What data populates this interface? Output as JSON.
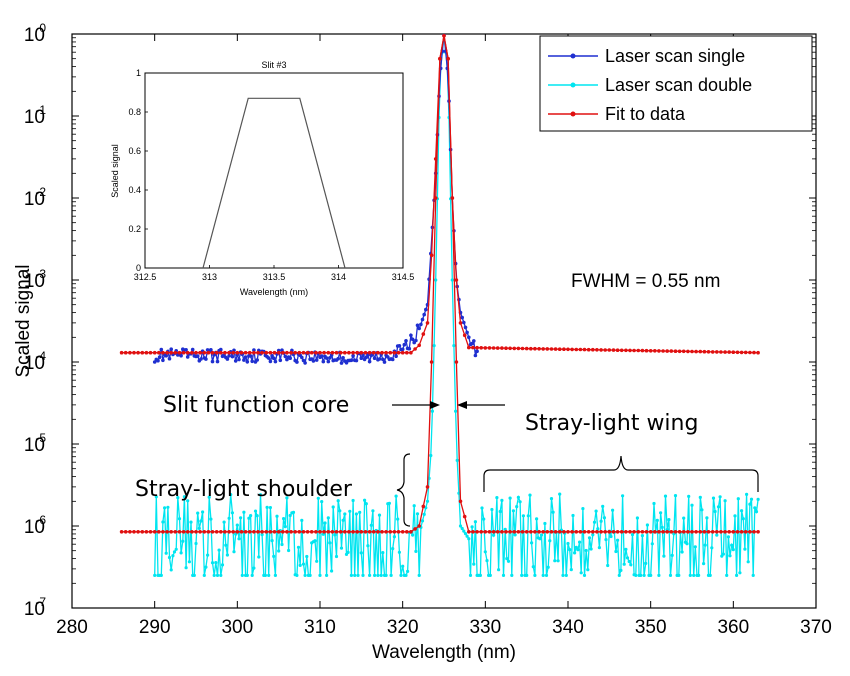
{
  "chart_data": [
    {
      "type": "line",
      "title": "",
      "xlabel": "Wavelength (nm)",
      "ylabel": "Scaled signal",
      "xlim": [
        280,
        370
      ],
      "ylim_log10": [
        -7,
        0
      ],
      "y_scale": "log",
      "x_ticks": [
        "280",
        "290",
        "300",
        "310",
        "320",
        "330",
        "340",
        "350",
        "360",
        "370"
      ],
      "y_ticks": [
        {
          "base": "10",
          "exp": "0"
        },
        {
          "base": "10",
          "exp": "-1"
        },
        {
          "base": "10",
          "exp": "-2"
        },
        {
          "base": "10",
          "exp": "-3"
        },
        {
          "base": "10",
          "exp": "-4"
        },
        {
          "base": "10",
          "exp": "-5"
        },
        {
          "base": "10",
          "exp": "-6"
        },
        {
          "base": "10",
          "exp": "-7"
        }
      ],
      "legend_position": "top-right",
      "series": [
        {
          "name": "Laser scan single",
          "color": "#1f2fd0",
          "x_range": [
            290,
            329
          ],
          "baseline": 0.00012,
          "x": [
            290,
            295,
            300,
            305,
            310,
            315,
            318,
            320,
            321,
            322,
            323,
            323.5,
            324,
            324.5,
            325,
            325.5,
            326,
            326.5,
            327,
            328,
            329
          ],
          "y": [
            0.00012,
            0.00012,
            0.00012,
            0.00012,
            0.000115,
            0.00011,
            0.00012,
            0.00014,
            0.00018,
            0.00025,
            0.0005,
            0.003,
            0.02,
            0.3,
            1.0,
            0.3,
            0.01,
            0.001,
            0.0004,
            0.0002,
            0.00013
          ]
        },
        {
          "name": "Laser scan double",
          "color": "#00e5f0",
          "x_range": [
            290,
            363
          ],
          "noise_floor": [
            2.5e-07,
            2.5e-06
          ],
          "x": [
            322,
            323,
            323.5,
            324,
            324.5,
            325,
            325.5,
            326,
            326.5,
            327,
            328
          ],
          "y": [
            8e-07,
            2e-06,
            1e-05,
            0.001,
            0.3,
            0.95,
            0.3,
            0.001,
            1e-05,
            1e-06,
            7e-07
          ]
        },
        {
          "name": "Fit to data",
          "color": "#e01010",
          "x_range": [
            286,
            363
          ],
          "baseline_upper": 0.00013,
          "baseline_lower": 8.5e-07,
          "x": [
            286,
            321,
            322,
            323,
            323.5,
            324,
            324.5,
            325,
            325.5,
            326,
            326.5,
            327,
            328,
            363
          ],
          "y": [
            8.5e-07,
            8.5e-07,
            1e-06,
            3e-06,
            0.0001,
            0.01,
            0.5,
            0.95,
            0.5,
            0.01,
            0.0001,
            2e-06,
            8.5e-07,
            8.5e-07
          ]
        }
      ],
      "annotations": {
        "fwhm": "FWHM = 0.55 nm",
        "core": "Slit function core",
        "wing": "Stray-light wing",
        "shoulder": "Stray-light shoulder"
      }
    },
    {
      "type": "line",
      "title": "Slit #3",
      "xlabel": "Wavelength (nm)",
      "ylabel": "Scaled signal",
      "xlim": [
        312.5,
        314.5
      ],
      "ylim": [
        0,
        1
      ],
      "x_ticks": [
        "312.5",
        "313",
        "313.5",
        "314",
        "314.5"
      ],
      "y_ticks": [
        "0",
        "0.2",
        "0.4",
        "0.6",
        "0.8",
        "1"
      ],
      "series": [
        {
          "color": "#555555",
          "x": [
            312.95,
            313.3,
            313.7,
            314.05
          ],
          "y": [
            0,
            0.87,
            0.87,
            0
          ]
        }
      ]
    }
  ]
}
